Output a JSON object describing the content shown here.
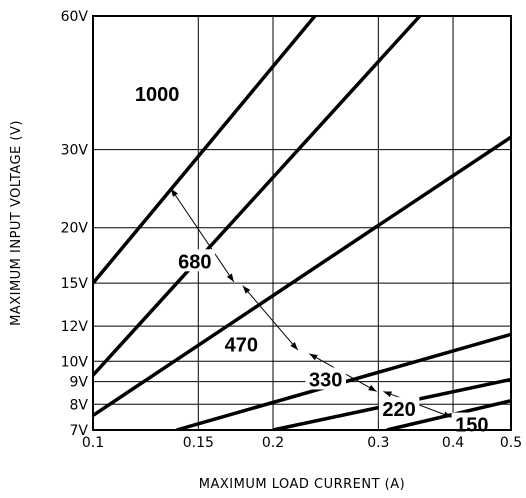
{
  "chart_data": {
    "type": "line",
    "xlabel": "MAXIMUM LOAD CURRENT (A)",
    "ylabel": "MAXIMUM INPUT VOLTAGE (V)",
    "xlim": [
      0.1,
      0.5
    ],
    "ylim": [
      7,
      60
    ],
    "x_ticks": [
      0.1,
      0.15,
      0.2,
      0.3,
      0.4,
      0.5
    ],
    "x_tick_labels": [
      "0.1",
      "0.15",
      "0.2",
      "0.3",
      "0.4",
      "0.5"
    ],
    "y_ticks": [
      7,
      8,
      9,
      10,
      12,
      15,
      20,
      30,
      60
    ],
    "y_tick_labels": [
      "7V",
      "8V",
      "9V",
      "10V",
      "12V",
      "15V",
      "20V",
      "30V",
      "60V"
    ],
    "grid": true,
    "series": [
      {
        "name": "1000",
        "points": [
          [
            0.1,
            15
          ],
          [
            0.235,
            60
          ]
        ]
      },
      {
        "name": "680",
        "points": [
          [
            0.1,
            9.3
          ],
          [
            0.352,
            60
          ]
        ]
      },
      {
        "name": "470",
        "points": [
          [
            0.1,
            7.55
          ],
          [
            0.5,
            32
          ]
        ]
      },
      {
        "name": "330",
        "points": [
          [
            0.138,
            7
          ],
          [
            0.5,
            11.5
          ]
        ]
      },
      {
        "name": "220",
        "points": [
          [
            0.2,
            7
          ],
          [
            0.5,
            9.1
          ]
        ]
      },
      {
        "name": "150",
        "points": [
          [
            0.31,
            7
          ],
          [
            0.5,
            8.15
          ]
        ]
      }
    ],
    "label_positions": {
      "1000": [
        0.128,
        40
      ],
      "680": [
        0.148,
        16.8
      ],
      "470": [
        0.177,
        10.9
      ],
      "330": [
        0.245,
        9.1
      ],
      "220": [
        0.325,
        7.8
      ],
      "150": [
        0.43,
        7.2
      ]
    },
    "arrows": [
      [
        [
          0.135,
          24.5
        ],
        [
          0.172,
          15.1
        ]
      ],
      [
        [
          0.178,
          14.8
        ],
        [
          0.22,
          10.6
        ]
      ],
      [
        [
          0.23,
          10.4
        ],
        [
          0.298,
          8.55
        ]
      ],
      [
        [
          0.306,
          8.55
        ],
        [
          0.398,
          7.48
        ]
      ]
    ]
  }
}
